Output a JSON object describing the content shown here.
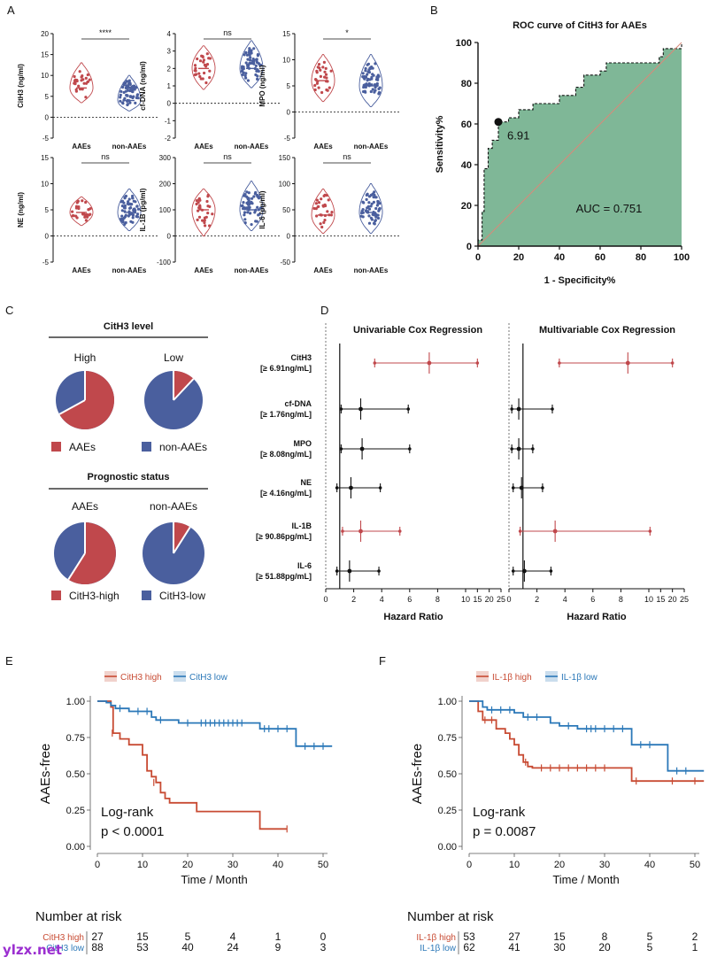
{
  "panel_labels": [
    "A",
    "B",
    "C",
    "D",
    "E",
    "F"
  ],
  "watermark": "ylzx.net",
  "colors": {
    "red": "#c0484c",
    "blue": "#4a5f9e",
    "green": "#7fb797",
    "black": "#111111",
    "km_red": "#c84b33",
    "km_blue": "#2b78b8"
  },
  "panelA": {
    "group_labels": [
      "AAEs",
      "non-AAEs"
    ],
    "plots": [
      {
        "ylabel": "CitH3 (ng/ml)",
        "ticks": [
          "20",
          "15",
          "10",
          "5",
          "0",
          "-5"
        ],
        "sig": "****",
        "red": [
          7,
          3.5,
          13
        ],
        "blue": [
          4,
          1.5,
          10
        ]
      },
      {
        "ylabel": "cf-DNA (ng/ml)",
        "ticks": [
          "4",
          "3",
          "2",
          "1",
          "0",
          "-1",
          "-2"
        ],
        "sig": "ns",
        "red": [
          2,
          0.8,
          3.3
        ],
        "blue": [
          2,
          0.9,
          3.6
        ]
      },
      {
        "ylabel": "MPO (ng/ml)",
        "ticks": [
          "15",
          "10",
          "5",
          "0",
          "-5"
        ],
        "sig": "*",
        "red": [
          6,
          2,
          11
        ],
        "blue": [
          5,
          1,
          11
        ]
      },
      {
        "ylabel": "NE (ng/ml)",
        "ticks": [
          "15",
          "10",
          "5",
          "0",
          "-5"
        ],
        "sig": "ns",
        "red": [
          4.5,
          2,
          7.5
        ],
        "blue": [
          4.5,
          1,
          9
        ]
      },
      {
        "ylabel": "IL-1B (pg/ml)",
        "ticks": [
          "300",
          "200",
          "100",
          "0",
          "-100"
        ],
        "sig": "ns",
        "red": [
          100,
          0,
          180
        ],
        "blue": [
          100,
          20,
          210
        ]
      },
      {
        "ylabel": "IL-6 (pg/ml)",
        "ticks": [
          "150",
          "100",
          "50",
          "0",
          "-50"
        ],
        "sig": "ns",
        "red": [
          40,
          5,
          90
        ],
        "blue": [
          45,
          5,
          100
        ]
      }
    ]
  },
  "panelB": {
    "chart_data": {
      "type": "line",
      "title": "ROC curve of CitH3 for AAEs",
      "xlabel": "1 - Specificity%",
      "ylabel": "Sensitivity%",
      "xlim": [
        0,
        100
      ],
      "ylim": [
        0,
        100
      ],
      "x_ticks": [
        "0",
        "20",
        "40",
        "60",
        "80",
        "100"
      ],
      "y_ticks": [
        "0",
        "20",
        "40",
        "60",
        "80",
        "100"
      ],
      "series": [
        {
          "name": "ROC",
          "points": [
            [
              0,
              0
            ],
            [
              0,
              3
            ],
            [
              2,
              3
            ],
            [
              2,
              17
            ],
            [
              3,
              17
            ],
            [
              3,
              38
            ],
            [
              5,
              38
            ],
            [
              5,
              48
            ],
            [
              7,
              48
            ],
            [
              7,
              52
            ],
            [
              10,
              52
            ],
            [
              10,
              61
            ],
            [
              15,
              61
            ],
            [
              15,
              63
            ],
            [
              20,
              63
            ],
            [
              20,
              67
            ],
            [
              27,
              67
            ],
            [
              27,
              70
            ],
            [
              40,
              70
            ],
            [
              40,
              74
            ],
            [
              48,
              74
            ],
            [
              48,
              78
            ],
            [
              52,
              78
            ],
            [
              52,
              84
            ],
            [
              60,
              84
            ],
            [
              60,
              86
            ],
            [
              63,
              86
            ],
            [
              63,
              90
            ],
            [
              89,
              90
            ],
            [
              89,
              93
            ],
            [
              91,
              93
            ],
            [
              91,
              97
            ],
            [
              100,
              97
            ],
            [
              100,
              100
            ]
          ]
        }
      ],
      "cutoff_point": [
        10,
        61
      ],
      "cutoff_label": "6.91",
      "auc_label": "AUC = 0.751"
    }
  },
  "panelC": {
    "header1": "CitH3 level",
    "header2": "Prognostic status",
    "top": {
      "labels": [
        "High",
        "Low"
      ],
      "red_fractions": [
        0.67,
        0.12
      ]
    },
    "bottom": {
      "labels": [
        "AAEs",
        "non-AAEs"
      ],
      "red_fractions": [
        0.59,
        0.09
      ]
    },
    "legend1": [
      "AAEs",
      "non-AAEs"
    ],
    "legend2": [
      "CitH3-high",
      "CitH3-low"
    ]
  },
  "panelD": {
    "titles": [
      "Univariable Cox Regression",
      "Multivariable Cox Regression"
    ],
    "xlabel": "Hazard Ratio",
    "ticks_uni": [
      "0",
      "2",
      "4",
      "6",
      "8",
      "10",
      "15",
      "20",
      "25"
    ],
    "ticks_multi": [
      "0",
      "2",
      "4",
      "6",
      "8",
      "10",
      "15",
      "20",
      "25"
    ],
    "rows": [
      {
        "name": "CitH3",
        "cut": "[≥ 6.91ng/mL]",
        "sig_uni": true,
        "sig_multi": true,
        "uni": [
          3.5,
          7.4,
          15
        ],
        "multi": [
          3.6,
          8.5,
          20
        ]
      },
      {
        "name": "cf-DNA",
        "cut": "[≥ 1.76ng/mL]",
        "sig_uni": false,
        "sig_multi": false,
        "uni": [
          1.1,
          2.5,
          5.9
        ],
        "multi": [
          0.2,
          0.7,
          3.1
        ]
      },
      {
        "name": "MPO",
        "cut": "[≥ 8.08ng/mL]",
        "sig_uni": false,
        "sig_multi": false,
        "uni": [
          1.1,
          2.6,
          6.0
        ],
        "multi": [
          0.2,
          0.7,
          1.7
        ]
      },
      {
        "name": "NE",
        "cut": "[≥ 4.16ng/mL]",
        "sig_uni": false,
        "sig_multi": false,
        "uni": [
          0.8,
          1.8,
          3.9
        ],
        "multi": [
          0.3,
          0.9,
          2.4
        ]
      },
      {
        "name": "IL-1B",
        "cut": "[≥ 90.86pg/mL]",
        "sig_uni": true,
        "sig_multi": true,
        "uni": [
          1.2,
          2.5,
          5.3
        ],
        "multi": [
          0.8,
          3.3,
          10.5
        ]
      },
      {
        "name": "IL-6",
        "cut": "[≥ 51.88pg/mL]",
        "sig_uni": false,
        "sig_multi": false,
        "uni": [
          0.8,
          1.7,
          3.8
        ],
        "multi": [
          0.3,
          1.1,
          3.0
        ]
      }
    ]
  },
  "panelE": {
    "chart_data": {
      "type": "line",
      "legend": [
        "CitH3 high",
        "CitH3 low"
      ],
      "ylabel": "AAEs-free",
      "xlabel": "Time / Month",
      "xlim": [
        0,
        50
      ],
      "ylim": [
        0,
        1
      ],
      "x_ticks": [
        "0",
        "10",
        "20",
        "30",
        "40",
        "50"
      ],
      "y_ticks": [
        "0.00",
        "0.25",
        "0.50",
        "0.75",
        "1.00"
      ],
      "series": [
        {
          "name": "CitH3 high",
          "steps": [
            [
              0,
              1
            ],
            [
              3,
              0.96
            ],
            [
              3.5,
              0.78
            ],
            [
              5,
              0.74
            ],
            [
              7,
              0.7
            ],
            [
              10,
              0.63
            ],
            [
              11,
              0.52
            ],
            [
              12,
              0.48
            ],
            [
              13,
              0.44
            ],
            [
              14,
              0.37
            ],
            [
              15,
              0.33
            ],
            [
              16,
              0.3
            ],
            [
              22,
              0.24
            ],
            [
              36,
              0.12
            ],
            [
              42,
              0.12
            ]
          ],
          "censors": [
            [
              3.3,
              0.78
            ],
            [
              12.5,
              0.44
            ],
            [
              42,
              0.12
            ]
          ]
        },
        {
          "name": "CitH3 low",
          "steps": [
            [
              0,
              1
            ],
            [
              2,
              0.99
            ],
            [
              3,
              0.97
            ],
            [
              4,
              0.95
            ],
            [
              7,
              0.93
            ],
            [
              12,
              0.89
            ],
            [
              13,
              0.87
            ],
            [
              18,
              0.85
            ],
            [
              36,
              0.81
            ],
            [
              44,
              0.69
            ],
            [
              52,
              0.69
            ]
          ],
          "censors": [
            [
              5,
              0.95
            ],
            [
              9,
              0.93
            ],
            [
              11,
              0.93
            ],
            [
              14,
              0.87
            ],
            [
              20,
              0.85
            ],
            [
              23,
              0.85
            ],
            [
              24,
              0.85
            ],
            [
              25,
              0.85
            ],
            [
              26,
              0.85
            ],
            [
              27,
              0.85
            ],
            [
              28,
              0.85
            ],
            [
              29,
              0.85
            ],
            [
              30,
              0.85
            ],
            [
              31,
              0.85
            ],
            [
              32,
              0.85
            ],
            [
              37,
              0.81
            ],
            [
              38,
              0.81
            ],
            [
              40,
              0.81
            ],
            [
              42,
              0.81
            ],
            [
              46,
              0.69
            ],
            [
              48,
              0.69
            ],
            [
              50,
              0.69
            ]
          ]
        }
      ],
      "stat_label": "Log-rank",
      "p_label": "p < 0.0001",
      "risk_title": "Number at risk",
      "risk_rows": [
        {
          "name": "CitH3 high",
          "values": [
            "27",
            "15",
            "5",
            "4",
            "1",
            "0"
          ]
        },
        {
          "name": "CitH3 low",
          "values": [
            "88",
            "53",
            "40",
            "24",
            "9",
            "3"
          ]
        }
      ]
    }
  },
  "panelF": {
    "chart_data": {
      "type": "line",
      "legend": [
        "IL-1β high",
        "IL-1β low"
      ],
      "ylabel": "AAEs-free",
      "xlabel": "Time / Month",
      "xlim": [
        0,
        50
      ],
      "ylim": [
        0,
        1
      ],
      "x_ticks": [
        "0",
        "10",
        "20",
        "30",
        "40",
        "50"
      ],
      "y_ticks": [
        "0.00",
        "0.25",
        "0.50",
        "0.75",
        "1.00"
      ],
      "series": [
        {
          "name": "IL-1β high",
          "steps": [
            [
              0,
              1
            ],
            [
              2,
              0.93
            ],
            [
              3,
              0.87
            ],
            [
              6,
              0.81
            ],
            [
              8,
              0.78
            ],
            [
              9,
              0.74
            ],
            [
              10,
              0.7
            ],
            [
              11,
              0.63
            ],
            [
              12,
              0.58
            ],
            [
              13,
              0.55
            ],
            [
              14,
              0.54
            ],
            [
              36,
              0.45
            ],
            [
              52,
              0.45
            ]
          ],
          "censors": [
            [
              3.5,
              0.87
            ],
            [
              5,
              0.87
            ],
            [
              12.5,
              0.58
            ],
            [
              16,
              0.54
            ],
            [
              18,
              0.54
            ],
            [
              20,
              0.54
            ],
            [
              22,
              0.54
            ],
            [
              24,
              0.54
            ],
            [
              26,
              0.54
            ],
            [
              28,
              0.54
            ],
            [
              30,
              0.54
            ],
            [
              37,
              0.45
            ],
            [
              45,
              0.45
            ],
            [
              50,
              0.45
            ]
          ]
        },
        {
          "name": "IL-1β low",
          "steps": [
            [
              0,
              1
            ],
            [
              3,
              0.96
            ],
            [
              4,
              0.94
            ],
            [
              10,
              0.92
            ],
            [
              12,
              0.89
            ],
            [
              18,
              0.85
            ],
            [
              20,
              0.83
            ],
            [
              24,
              0.81
            ],
            [
              36,
              0.7
            ],
            [
              44,
              0.52
            ],
            [
              52,
              0.52
            ]
          ],
          "censors": [
            [
              5,
              0.94
            ],
            [
              7,
              0.94
            ],
            [
              9,
              0.94
            ],
            [
              13,
              0.89
            ],
            [
              15,
              0.89
            ],
            [
              22,
              0.83
            ],
            [
              26,
              0.81
            ],
            [
              27,
              0.81
            ],
            [
              28,
              0.81
            ],
            [
              30,
              0.81
            ],
            [
              32,
              0.81
            ],
            [
              34,
              0.81
            ],
            [
              38,
              0.7
            ],
            [
              40,
              0.7
            ],
            [
              46,
              0.52
            ],
            [
              48,
              0.52
            ]
          ]
        }
      ],
      "stat_label": "Log-rank",
      "p_label": "p = 0.0087",
      "risk_title": "Number at risk",
      "risk_rows": [
        {
          "name": "IL-1β high",
          "values": [
            "53",
            "27",
            "15",
            "8",
            "5",
            "2"
          ]
        },
        {
          "name": "IL-1β low",
          "values": [
            "62",
            "41",
            "30",
            "20",
            "5",
            "1"
          ]
        }
      ]
    }
  }
}
